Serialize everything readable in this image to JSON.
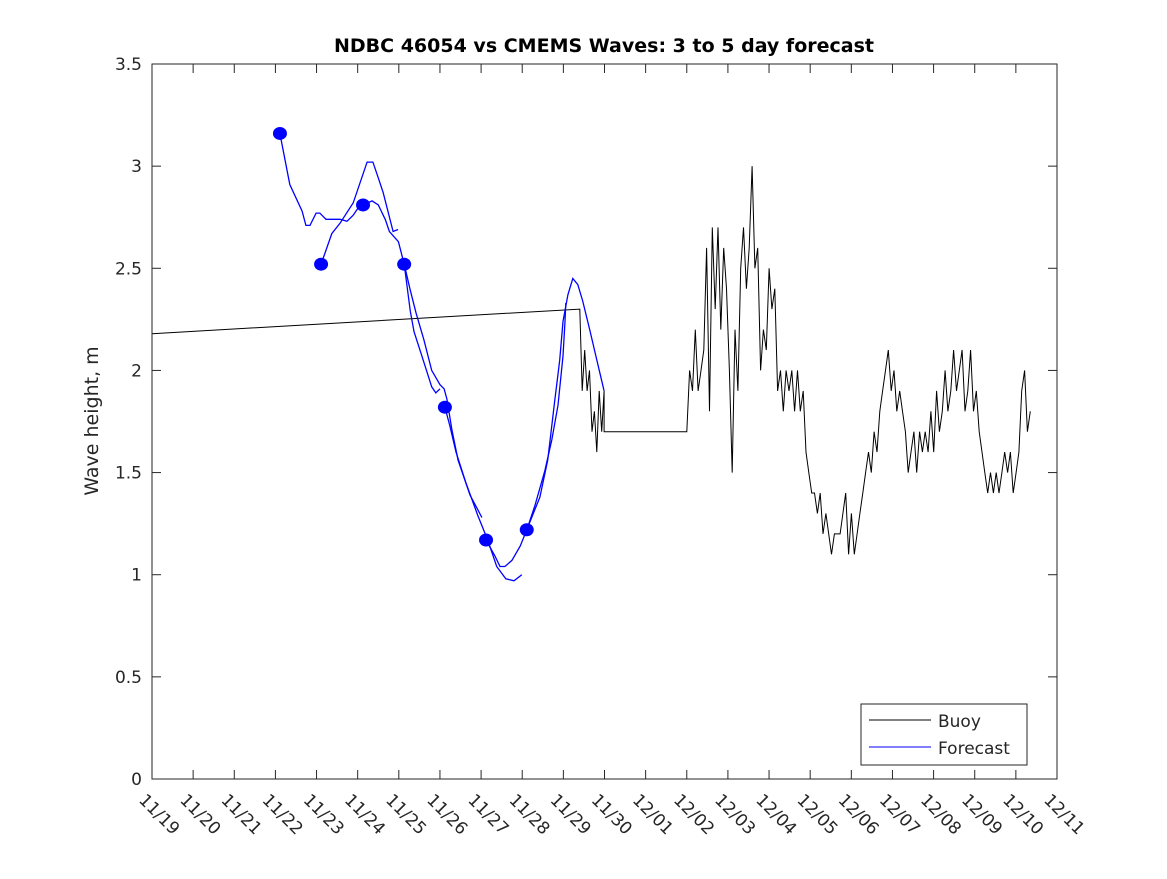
{
  "chart_data": {
    "type": "line",
    "title": "NDBC 46054 vs CMEMS Waves: 3 to 5 day forecast",
    "xlabel": "",
    "ylabel": "Wave height, m",
    "x_unit": "days since 11/19",
    "xlim": [
      0,
      22
    ],
    "ylim": [
      0,
      3.5
    ],
    "yticks": [
      0,
      0.5,
      1,
      1.5,
      2,
      2.5,
      3,
      3.5
    ],
    "ytick_labels": [
      "0",
      "0.5",
      "1",
      "1.5",
      "2",
      "2.5",
      "3",
      "3.5"
    ],
    "xtick_labels": [
      "11/19",
      "11/20",
      "11/21",
      "11/22",
      "11/23",
      "11/24",
      "11/25",
      "11/26",
      "11/27",
      "11/28",
      "11/29",
      "11/30",
      "12/01",
      "12/02",
      "12/03",
      "12/04",
      "12/05",
      "12/06",
      "12/07",
      "12/08",
      "12/09",
      "12/10",
      "12/11"
    ],
    "grid": false,
    "legend": {
      "placement": "bottom-right",
      "entries": [
        "Buoy",
        "Forecast"
      ]
    },
    "colors": {
      "buoy": "#000000",
      "forecast": "#0000ff"
    },
    "buoy": {
      "points": [
        [
          0,
          2.18
        ],
        [
          10.4,
          2.3
        ]
      ],
      "noisy_segments": [
        {
          "x0": 10.4,
          "x1": 10.99,
          "values": [
            2.3,
            1.9,
            2.1,
            1.9,
            2.0,
            1.7,
            1.8,
            1.6,
            1.9,
            1.7,
            1.9
          ]
        },
        {
          "x0": 10.99,
          "x1": 13.0,
          "values": [
            1.7,
            1.7
          ]
        },
        {
          "x0": 13.0,
          "x1": 21.35,
          "values": [
            1.7,
            2.0,
            1.9,
            2.2,
            1.9,
            2.0,
            2.1,
            2.6,
            1.8,
            2.7,
            2.3,
            2.7,
            2.2,
            2.6,
            2.4,
            2.0,
            1.5,
            2.2,
            1.9,
            2.5,
            2.7,
            2.4,
            2.6,
            3.0,
            2.5,
            2.6,
            2.0,
            2.2,
            2.1,
            2.5,
            2.3,
            2.4,
            1.9,
            2.0,
            1.8,
            2.0,
            1.9,
            2.0,
            1.8,
            2.0,
            1.8,
            1.9,
            1.6,
            1.5,
            1.4,
            1.4,
            1.3,
            1.4,
            1.2,
            1.3,
            1.2,
            1.1,
            1.2,
            1.2,
            1.2,
            1.3,
            1.4,
            1.1,
            1.3,
            1.1,
            1.2,
            1.3,
            1.4,
            1.5,
            1.6,
            1.5,
            1.7,
            1.6,
            1.8,
            1.9,
            2.0,
            2.1,
            1.9,
            2.0,
            1.8,
            1.9,
            1.8,
            1.7,
            1.5,
            1.6,
            1.7,
            1.5,
            1.7,
            1.6,
            1.7,
            1.6,
            1.8,
            1.6,
            1.9,
            1.7,
            1.8,
            2.0,
            1.8,
            1.9,
            2.1,
            1.9,
            2.0,
            2.1,
            1.8,
            1.9,
            2.1,
            1.8,
            1.9,
            1.7,
            1.6,
            1.5,
            1.4,
            1.5,
            1.4,
            1.5,
            1.4,
            1.5,
            1.6,
            1.5,
            1.6,
            1.4,
            1.5,
            1.6,
            1.9,
            2.0,
            1.7,
            1.8
          ]
        }
      ]
    },
    "forecast_segments": [
      [
        [
          3.11,
          3.16
        ],
        [
          3.35,
          2.91
        ],
        [
          3.65,
          2.78
        ],
        [
          3.74,
          2.71
        ],
        [
          3.84,
          2.71
        ],
        [
          3.99,
          2.77
        ],
        [
          4.08,
          2.77
        ],
        [
          4.23,
          2.74
        ],
        [
          4.57,
          2.74
        ],
        [
          4.74,
          2.73
        ],
        [
          4.89,
          2.76
        ],
        [
          5.06,
          2.81
        ]
      ],
      [
        [
          4.11,
          2.52
        ],
        [
          4.37,
          2.67
        ],
        [
          4.57,
          2.72
        ],
        [
          4.89,
          2.82
        ],
        [
          5.23,
          3.02
        ],
        [
          5.37,
          3.02
        ],
        [
          5.49,
          2.95
        ],
        [
          5.62,
          2.87
        ],
        [
          5.86,
          2.68
        ],
        [
          5.98,
          2.69
        ]
      ],
      [
        [
          5.13,
          2.81
        ],
        [
          5.35,
          2.83
        ],
        [
          5.5,
          2.81
        ],
        [
          5.67,
          2.74
        ],
        [
          5.77,
          2.68
        ],
        [
          5.99,
          2.63
        ],
        [
          6.13,
          2.52
        ],
        [
          6.28,
          2.29
        ],
        [
          6.37,
          2.19
        ],
        [
          6.56,
          2.07
        ],
        [
          6.8,
          1.92
        ],
        [
          6.9,
          1.89
        ],
        [
          7.0,
          1.91
        ]
      ],
      [
        [
          6.13,
          2.52
        ],
        [
          6.27,
          2.4
        ],
        [
          6.42,
          2.28
        ],
        [
          6.61,
          2.15
        ],
        [
          6.8,
          2.0
        ],
        [
          7.0,
          1.93
        ],
        [
          7.1,
          1.91
        ],
        [
          7.17,
          1.86
        ],
        [
          7.29,
          1.71
        ],
        [
          7.44,
          1.56
        ],
        [
          7.73,
          1.39
        ],
        [
          8.02,
          1.28
        ]
      ],
      [
        [
          7.12,
          1.82
        ],
        [
          7.24,
          1.73
        ],
        [
          7.39,
          1.6
        ],
        [
          7.63,
          1.45
        ],
        [
          7.92,
          1.29
        ],
        [
          8.16,
          1.17
        ],
        [
          8.38,
          1.04
        ],
        [
          8.6,
          0.98
        ],
        [
          8.8,
          0.97
        ],
        [
          8.99,
          1.0
        ]
      ],
      [
        [
          8.12,
          1.17
        ],
        [
          8.34,
          1.09
        ],
        [
          8.46,
          1.04
        ],
        [
          8.58,
          1.04
        ],
        [
          8.75,
          1.07
        ],
        [
          8.95,
          1.14
        ],
        [
          9.11,
          1.22
        ],
        [
          9.31,
          1.34
        ],
        [
          9.55,
          1.51
        ],
        [
          9.72,
          1.66
        ],
        [
          9.87,
          1.83
        ],
        [
          9.99,
          2.07
        ],
        [
          10.04,
          2.24
        ],
        [
          10.06,
          2.33
        ]
      ],
      [
        [
          9.11,
          1.22
        ],
        [
          9.31,
          1.32
        ],
        [
          9.43,
          1.38
        ],
        [
          9.62,
          1.56
        ],
        [
          9.79,
          1.85
        ],
        [
          9.91,
          2.05
        ],
        [
          9.99,
          2.24
        ],
        [
          10.11,
          2.37
        ],
        [
          10.23,
          2.45
        ],
        [
          10.35,
          2.42
        ],
        [
          10.47,
          2.34
        ],
        [
          10.64,
          2.2
        ],
        [
          10.79,
          2.07
        ],
        [
          10.99,
          1.9
        ]
      ]
    ],
    "forecast_markers": [
      [
        3.11,
        3.16
      ],
      [
        4.11,
        2.52
      ],
      [
        5.13,
        2.81
      ],
      [
        6.13,
        2.52
      ],
      [
        7.12,
        1.82
      ],
      [
        8.12,
        1.17
      ],
      [
        9.11,
        1.22
      ]
    ]
  }
}
